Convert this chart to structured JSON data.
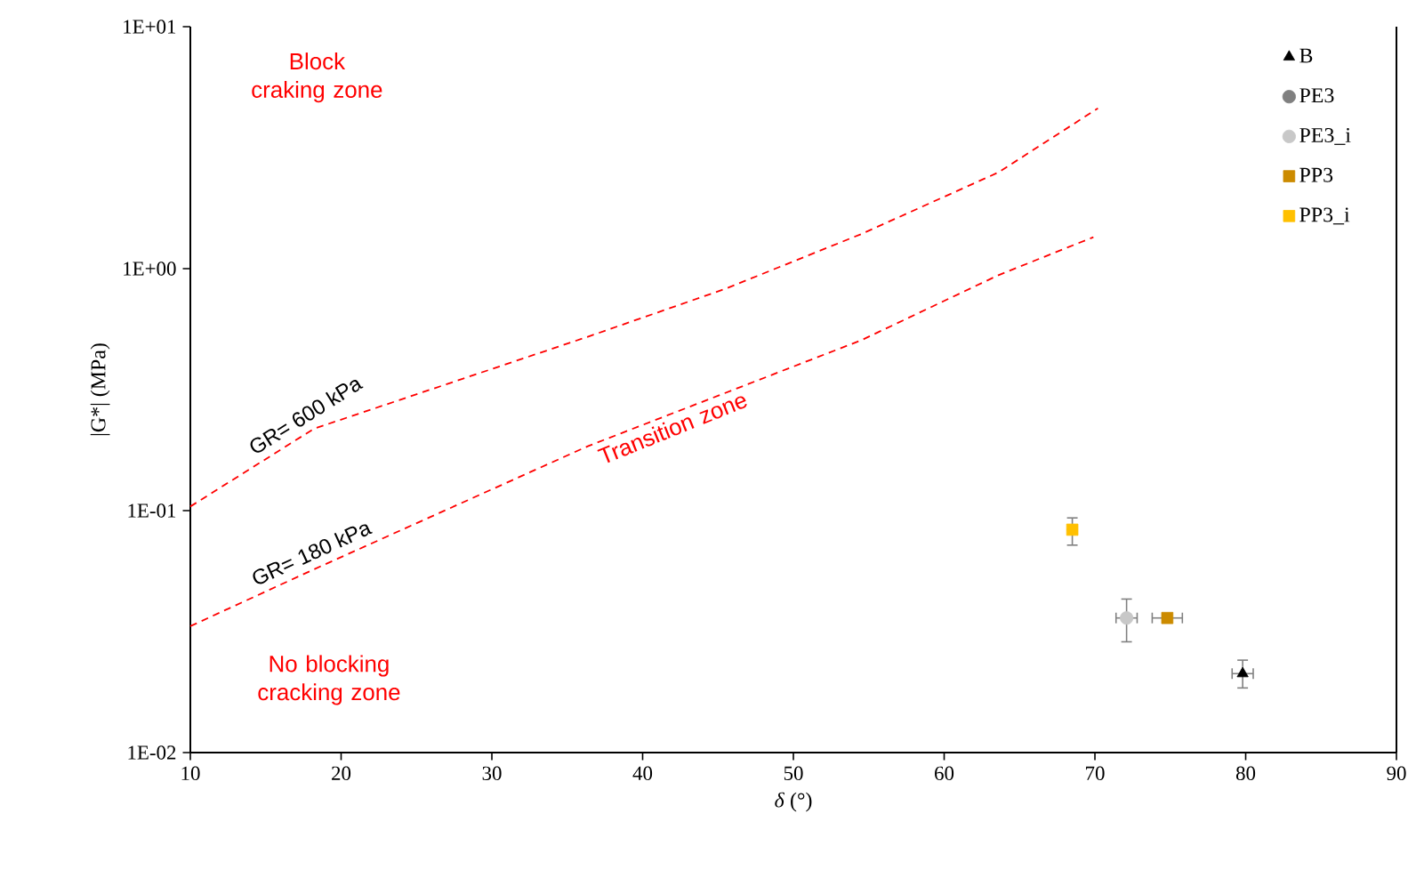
{
  "chart_data": {
    "type": "scatter",
    "xlabel": "*δ* (°)",
    "ylabel": "|G*| (MPa)",
    "xlim": [
      10,
      90
    ],
    "xticks": [
      10,
      20,
      30,
      40,
      50,
      60,
      70,
      80,
      90
    ],
    "ylim": [
      0.01,
      10
    ],
    "log": "y",
    "yticks": [
      {
        "value": 0.01,
        "label": "1E-02"
      },
      {
        "value": 0.1,
        "label": "1E-01"
      },
      {
        "value": 1,
        "label": "1E+00"
      },
      {
        "value": 10,
        "label": "1E+01"
      }
    ],
    "legend": "top right",
    "annotations": [
      "Block craking zone",
      "Transition zone",
      "No blocking cracking zone"
    ],
    "series": [
      {
        "name": "GR= 600 kPa",
        "type": "line",
        "color": "#ff0000",
        "line_style": "dashed",
        "marker": "none",
        "x": [
          10,
          18.2,
          36.4,
          45.5,
          54.5,
          63.6,
          70.2
        ],
        "values": [
          0.104,
          0.218,
          0.524,
          0.826,
          1.39,
          2.5,
          4.6
        ]
      },
      {
        "name": "GR= 180 kPa",
        "type": "line",
        "color": "#ff0000",
        "line_style": "dashed",
        "marker": "none",
        "x": [
          10,
          18.2,
          36.4,
          54.5,
          63.6,
          69.9
        ],
        "values": [
          0.0333,
          0.0572,
          0.185,
          0.506,
          0.94,
          1.35
        ]
      },
      {
        "name": "B",
        "color": "#000000",
        "marker": "triangle",
        "x": [
          79.8
        ],
        "values": [
          0.0212
        ],
        "errors": [
          [
            0.0185,
            0.0241
          ]
        ],
        "xerrors": [
          0.7
        ]
      },
      {
        "name": "PE3",
        "color": "#808080",
        "marker": "circle",
        "x": [
          null
        ],
        "values": [
          null
        ]
      },
      {
        "name": "PE3_i",
        "color": "#c8c8c8",
        "marker": "circle",
        "x": [
          72.1
        ],
        "values": [
          0.036
        ],
        "errors": [
          [
            0.0287,
            0.0431
          ]
        ],
        "xerrors": [
          0.7
        ]
      },
      {
        "name": "PP3",
        "color": "#cc8b00",
        "marker": "square",
        "x": [
          74.8
        ],
        "values": [
          0.036
        ],
        "xerrors": [
          1
        ]
      },
      {
        "name": "PP3_i",
        "color": "#ffc000",
        "marker": "square",
        "x": [
          68.5
        ],
        "values": [
          0.0834
        ],
        "errors": [
          [
            0.072,
            0.0933
          ]
        ]
      }
    ]
  }
}
